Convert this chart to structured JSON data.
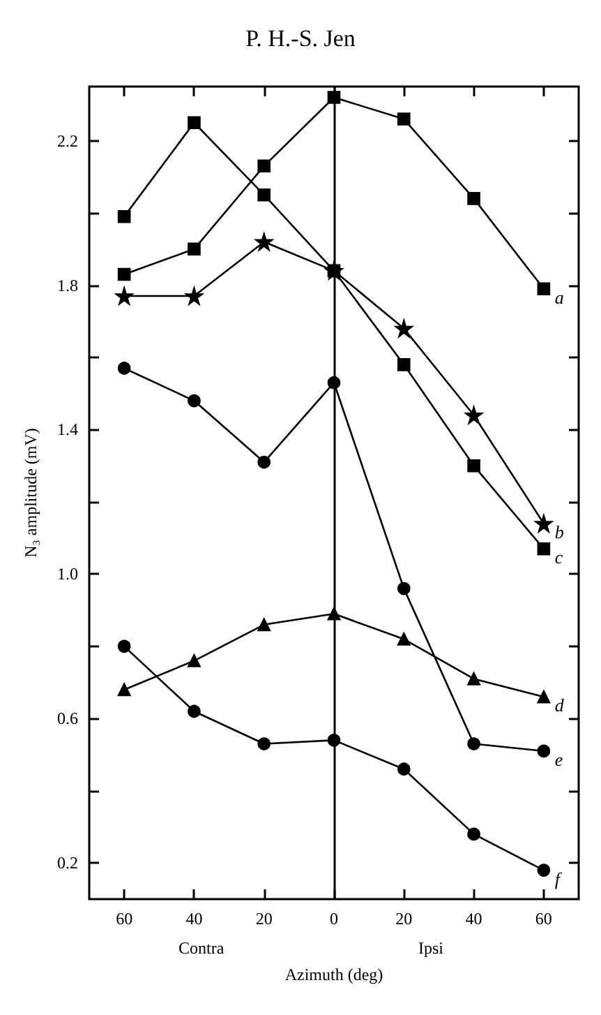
{
  "chart_data": {
    "type": "line",
    "title": "P. H.-S. Jen",
    "xlabel": "Azimuth (deg)",
    "ylabel": "N₃ amplitude (mV)",
    "annotations": [
      "Contra",
      "Ipsi"
    ],
    "x": [
      -60,
      -40,
      -20,
      0,
      20,
      40,
      60
    ],
    "xlim": [
      -70,
      70
    ],
    "xticks": [
      {
        "value": -60,
        "label": "60"
      },
      {
        "value": -40,
        "label": "40"
      },
      {
        "value": -20,
        "label": "20"
      },
      0,
      20,
      40,
      60
    ],
    "ylim": [
      0.1,
      2.35
    ],
    "yticks": [
      0.2,
      {
        "value": 0.4,
        "label": null
      },
      0.6,
      {
        "value": 0.8,
        "label": null
      },
      {
        "value": 1.0,
        "label": "1.0"
      },
      {
        "value": 1.2,
        "label": null
      },
      1.4,
      {
        "value": 1.6,
        "label": null
      },
      1.8,
      {
        "value": 2.0,
        "label": null
      },
      2.2
    ],
    "ref_lines": [
      {
        "axis": "x",
        "value": 0,
        "color": "#000000",
        "line_style": "solid"
      }
    ],
    "grid": false,
    "legend": "right",
    "line_style": "solid",
    "series": [
      {
        "name": "a",
        "color": "#000000",
        "marker": "square",
        "values": [
          1.83,
          1.9,
          2.13,
          2.32,
          2.26,
          2.04,
          1.79
        ]
      },
      {
        "name": "b",
        "color": "#000000",
        "marker": "star",
        "values": [
          1.77,
          1.77,
          1.92,
          1.84,
          1.68,
          1.44,
          1.14
        ]
      },
      {
        "name": "c",
        "color": "#000000",
        "marker": "square",
        "values": [
          1.99,
          2.25,
          2.05,
          1.84,
          1.58,
          1.3,
          1.07
        ]
      },
      {
        "name": "d",
        "color": "#000000",
        "marker": "triangle",
        "values": [
          0.68,
          0.76,
          0.86,
          0.89,
          0.82,
          0.71,
          0.66
        ]
      },
      {
        "name": "e",
        "color": "#000000",
        "marker": "circle",
        "values": [
          1.57,
          1.48,
          1.31,
          1.53,
          0.96,
          0.53,
          0.51
        ]
      },
      {
        "name": "f",
        "color": "#000000",
        "marker": "circle",
        "values": [
          0.8,
          0.62,
          0.53,
          0.54,
          0.46,
          0.28,
          0.18
        ]
      }
    ]
  }
}
